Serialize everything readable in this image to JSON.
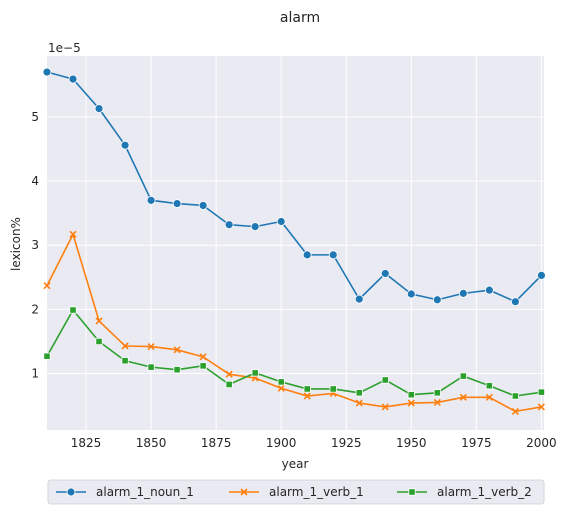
{
  "chart_data": {
    "type": "line",
    "title": "alarm",
    "xlabel": "year",
    "ylabel": "lexicon%",
    "y_offset_label": "1e−5",
    "xlim": [
      1810,
      2001
    ],
    "ylim": [
      0.12,
      5.95
    ],
    "x_ticks": [
      1825,
      1850,
      1875,
      1900,
      1925,
      1950,
      1975,
      2000
    ],
    "y_ticks": [
      1,
      2,
      3,
      4,
      5
    ],
    "grid": true,
    "legend_position": "bottom-center",
    "x": [
      1810,
      1820,
      1830,
      1840,
      1850,
      1860,
      1870,
      1880,
      1890,
      1900,
      1910,
      1920,
      1930,
      1940,
      1950,
      1960,
      1970,
      1980,
      1990,
      2000
    ],
    "series": [
      {
        "name": "alarm_1_noun_1",
        "color": "#1f77b4",
        "marker": "circle",
        "values": [
          5.7,
          5.59,
          5.13,
          4.56,
          3.7,
          3.65,
          3.62,
          3.32,
          3.29,
          3.37,
          2.85,
          2.85,
          2.16,
          2.56,
          2.24,
          2.15,
          2.25,
          2.3,
          2.12,
          2.53
        ]
      },
      {
        "name": "alarm_1_verb_1",
        "color": "#ff7f0e",
        "marker": "x",
        "values": [
          2.37,
          3.17,
          1.82,
          1.43,
          1.42,
          1.37,
          1.26,
          0.99,
          0.93,
          0.77,
          0.65,
          0.69,
          0.54,
          0.48,
          0.54,
          0.55,
          0.63,
          0.63,
          0.41,
          0.48
        ]
      },
      {
        "name": "alarm_1_verb_2",
        "color": "#2ca02c",
        "marker": "square",
        "values": [
          1.27,
          1.99,
          1.5,
          1.2,
          1.1,
          1.06,
          1.12,
          0.83,
          1.01,
          0.87,
          0.76,
          0.76,
          0.7,
          0.9,
          0.67,
          0.7,
          0.96,
          0.81,
          0.65,
          0.71
        ]
      }
    ]
  }
}
